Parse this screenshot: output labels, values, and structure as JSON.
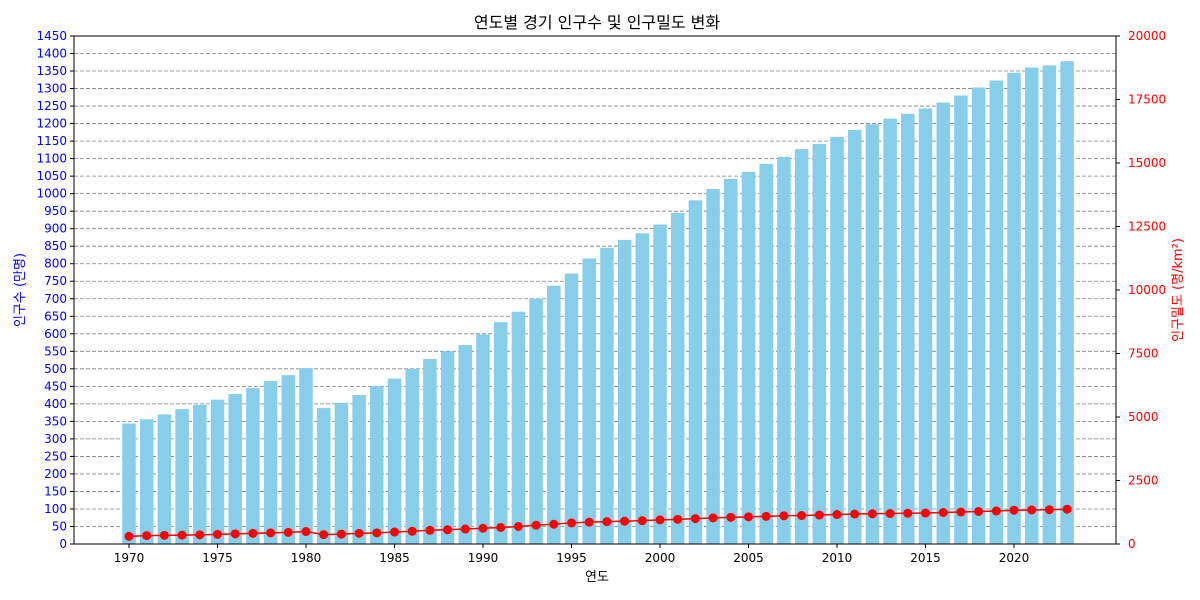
{
  "chart_data": {
    "type": "bar",
    "title": "연도별 경기 인구수 및 인구밀도 변화",
    "xlabel": "연도",
    "ylabel_left": "인구수 (만명)",
    "ylabel_right": "인구밀도 (명/km²)",
    "x": [
      1970,
      1971,
      1972,
      1973,
      1974,
      1975,
      1976,
      1977,
      1978,
      1979,
      1980,
      1981,
      1982,
      1983,
      1984,
      1985,
      1986,
      1987,
      1988,
      1989,
      1990,
      1991,
      1992,
      1993,
      1994,
      1995,
      1996,
      1997,
      1998,
      1999,
      2000,
      2001,
      2002,
      2003,
      2004,
      2005,
      2006,
      2007,
      2008,
      2009,
      2010,
      2011,
      2012,
      2013,
      2014,
      2015,
      2016,
      2017,
      2018,
      2019,
      2020,
      2021,
      2022,
      2023
    ],
    "x_ticks": [
      1970,
      1975,
      1980,
      1985,
      1990,
      1995,
      2000,
      2005,
      2010,
      2015,
      2020
    ],
    "ylim_left": [
      0,
      1450
    ],
    "yticks_left_step": 50,
    "ylim_right": [
      0,
      20000
    ],
    "yticks_right": [
      0,
      2500,
      5000,
      7500,
      10000,
      12500,
      15000,
      17500,
      20000
    ],
    "grid": "horizontal dashed",
    "series": [
      {
        "type": "bar",
        "axis": "left",
        "color": "#87ceeb",
        "values": [
          344,
          356,
          370,
          385,
          397,
          412,
          428,
          445,
          465,
          482,
          502,
          388,
          403,
          425,
          450,
          472,
          500,
          528,
          550,
          568,
          598,
          633,
          663,
          700,
          737,
          772,
          815,
          845,
          868,
          887,
          912,
          945,
          981,
          1013,
          1042,
          1062,
          1085,
          1105,
          1127,
          1142,
          1162,
          1182,
          1198,
          1214,
          1228,
          1243,
          1260,
          1280,
          1303,
          1323,
          1345,
          1360,
          1366,
          1378
        ]
      },
      {
        "type": "line",
        "axis": "right",
        "color": "#ff0000",
        "values": [
          300,
          330,
          340,
          350,
          360,
          380,
          400,
          420,
          440,
          460,
          490,
          370,
          390,
          420,
          440,
          470,
          500,
          540,
          560,
          590,
          620,
          650,
          690,
          740,
          780,
          830,
          860,
          880,
          900,
          920,
          950,
          970,
          1000,
          1030,
          1050,
          1070,
          1090,
          1110,
          1120,
          1140,
          1160,
          1180,
          1190,
          1200,
          1210,
          1220,
          1240,
          1260,
          1280,
          1300,
          1330,
          1340,
          1350,
          1370
        ]
      }
    ],
    "colors": {
      "left_axis": "#0000ff",
      "right_axis": "#ff0000",
      "grid": "#808080"
    }
  }
}
